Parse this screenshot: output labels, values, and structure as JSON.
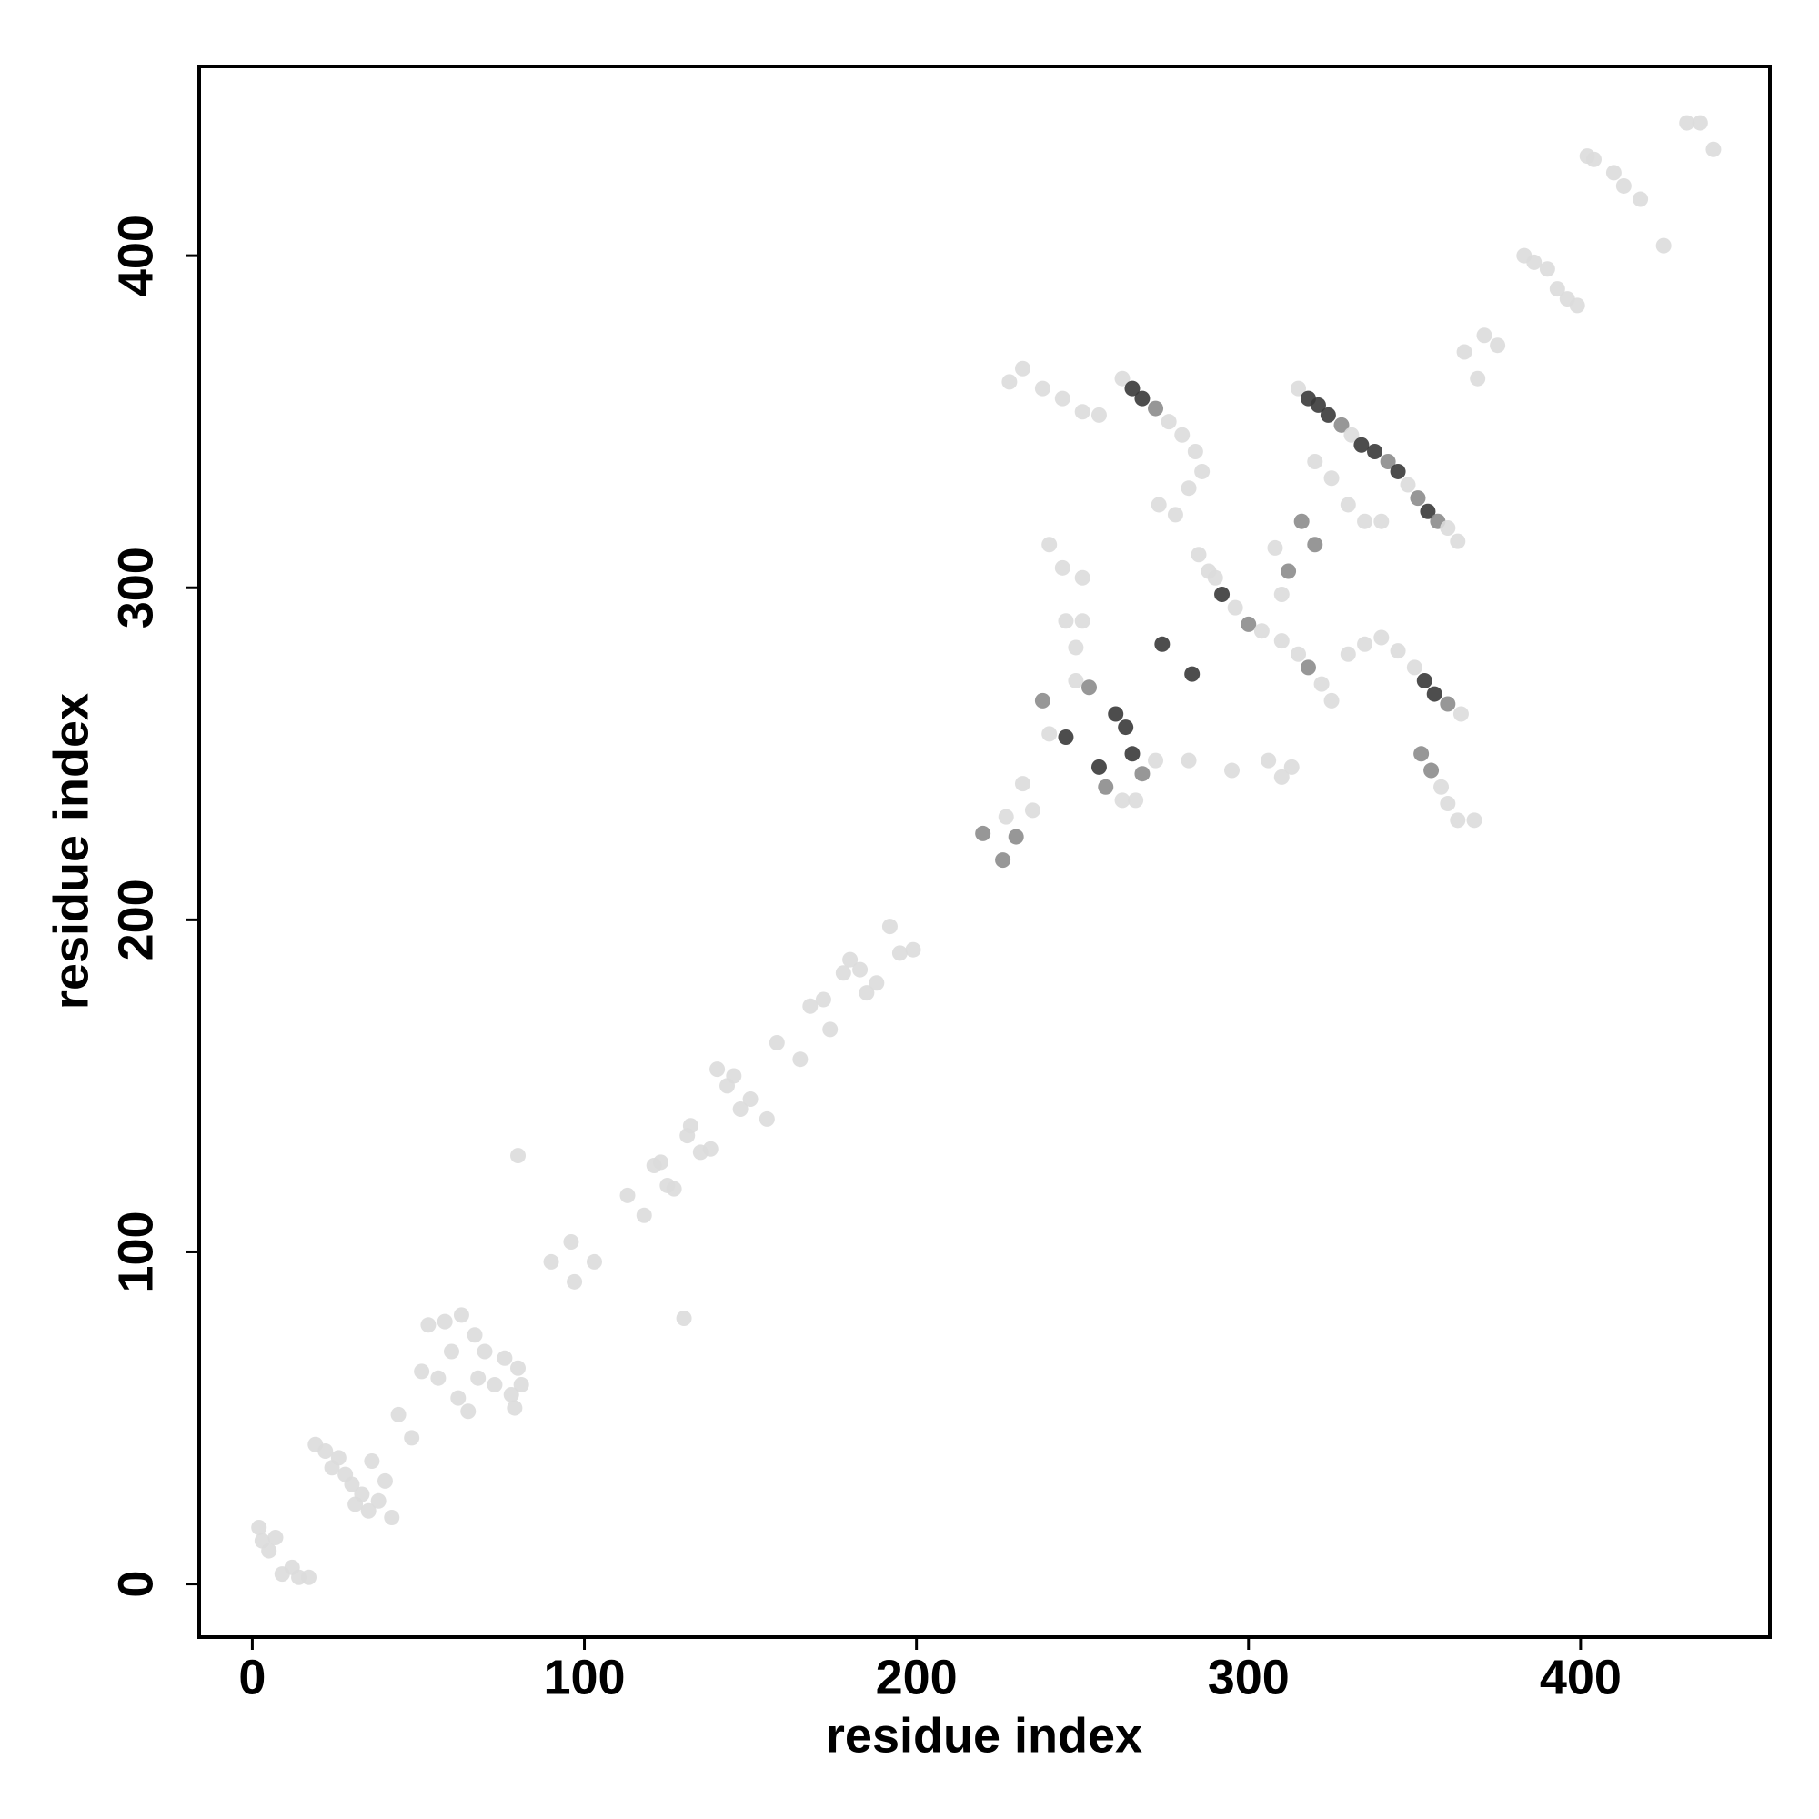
{
  "chart_data": {
    "type": "scatter",
    "x_label": "residue index",
    "y_label": "residue index",
    "xlim": [
      -16,
      457
    ],
    "ylim": [
      -16,
      457
    ],
    "xticks": [
      0,
      100,
      200,
      300,
      400
    ],
    "yticks": [
      0,
      100,
      200,
      300,
      400
    ],
    "grid": false,
    "x": [
      2,
      3,
      5,
      7,
      9,
      12,
      14,
      17,
      19,
      22,
      24,
      26,
      28,
      30,
      31,
      33,
      35,
      36,
      38,
      40,
      42,
      44,
      48,
      51,
      53,
      56,
      58,
      60,
      62,
      63,
      65,
      67,
      68,
      70,
      73,
      76,
      78,
      79,
      80,
      81,
      80,
      130,
      90,
      96,
      97,
      103,
      113,
      118,
      121,
      123,
      125,
      127,
      131,
      132,
      135,
      138,
      140,
      143,
      145,
      147,
      150,
      155,
      158,
      165,
      168,
      172,
      174,
      178,
      180,
      183,
      185,
      188,
      192,
      195,
      199,
      220,
      226,
      227,
      230,
      232,
      235,
      238,
      240,
      245,
      248,
      252,
      255,
      257,
      260,
      263,
      265,
      268,
      272,
      262,
      274,
      283,
      266,
      248,
      245,
      250,
      240,
      244,
      250,
      228,
      232,
      238,
      244,
      250,
      255,
      262,
      265,
      268,
      272,
      276,
      280,
      284,
      286,
      282,
      278,
      273,
      290,
      292,
      296,
      300,
      304,
      310,
      315,
      318,
      322,
      325,
      285,
      288,
      282,
      295,
      306,
      310,
      313,
      315,
      318,
      321,
      324,
      328,
      331,
      334,
      338,
      342,
      345,
      348,
      351,
      354,
      357,
      360,
      363,
      320,
      325,
      330,
      335,
      340,
      308,
      312,
      316,
      320,
      310,
      330,
      335,
      340,
      345,
      350,
      353,
      356,
      360,
      364,
      352,
      355,
      358,
      360,
      363,
      368,
      365,
      369,
      371,
      375,
      383,
      386,
      390,
      393,
      396,
      399,
      402,
      404,
      410,
      413,
      418,
      425,
      432,
      436,
      440
    ],
    "values": [
      17,
      13,
      10,
      14,
      3,
      5,
      2,
      2,
      42,
      40,
      35,
      38,
      33,
      30,
      24,
      27,
      22,
      37,
      25,
      31,
      20,
      51,
      44,
      64,
      78,
      62,
      79,
      70,
      56,
      81,
      52,
      75,
      62,
      70,
      60,
      68,
      57,
      53,
      65,
      60,
      129,
      80,
      97,
      103,
      91,
      97,
      117,
      111,
      126,
      127,
      120,
      119,
      135,
      138,
      130,
      131,
      155,
      150,
      153,
      143,
      146,
      140,
      163,
      158,
      174,
      176,
      167,
      184,
      188,
      185,
      178,
      181,
      198,
      190,
      191,
      226,
      218,
      231,
      225,
      241,
      233,
      266,
      256,
      255,
      272,
      270,
      246,
      240,
      262,
      258,
      250,
      244,
      248,
      236,
      283,
      274,
      236,
      282,
      290,
      290,
      313,
      306,
      303,
      362,
      366,
      360,
      357,
      353,
      352,
      363,
      360,
      357,
      354,
      350,
      346,
      341,
      335,
      330,
      322,
      325,
      303,
      298,
      294,
      289,
      287,
      284,
      280,
      276,
      271,
      266,
      310,
      305,
      248,
      245,
      248,
      243,
      246,
      360,
      357,
      355,
      352,
      349,
      346,
      343,
      341,
      338,
      335,
      331,
      327,
      323,
      320,
      318,
      314,
      338,
      333,
      325,
      320,
      320,
      312,
      305,
      320,
      313,
      298,
      280,
      283,
      285,
      281,
      276,
      272,
      268,
      265,
      262,
      250,
      245,
      240,
      235,
      230,
      230,
      371,
      363,
      376,
      373,
      400,
      398,
      396,
      390,
      387,
      385,
      430,
      429,
      425,
      421,
      417,
      403,
      440,
      440,
      432
    ],
    "colors": [
      "#dcdcdc",
      "#dcdcdc",
      "#dcdcdc",
      "#dcdcdc",
      "#dcdcdc",
      "#dcdcdc",
      "#dcdcdc",
      "#dcdcdc",
      "#dcdcdc",
      "#dcdcdc",
      "#dcdcdc",
      "#dcdcdc",
      "#dcdcdc",
      "#dcdcdc",
      "#dcdcdc",
      "#dcdcdc",
      "#dcdcdc",
      "#dcdcdc",
      "#dcdcdc",
      "#dcdcdc",
      "#dcdcdc",
      "#dcdcdc",
      "#dcdcdc",
      "#dcdcdc",
      "#dcdcdc",
      "#dcdcdc",
      "#dcdcdc",
      "#dcdcdc",
      "#dcdcdc",
      "#dcdcdc",
      "#dcdcdc",
      "#dcdcdc",
      "#dcdcdc",
      "#dcdcdc",
      "#dcdcdc",
      "#dcdcdc",
      "#dcdcdc",
      "#dcdcdc",
      "#dcdcdc",
      "#dcdcdc",
      "#dcdcdc",
      "#dcdcdc",
      "#dcdcdc",
      "#dcdcdc",
      "#dcdcdc",
      "#dcdcdc",
      "#dcdcdc",
      "#dcdcdc",
      "#dcdcdc",
      "#dcdcdc",
      "#dcdcdc",
      "#dcdcdc",
      "#dcdcdc",
      "#dcdcdc",
      "#dcdcdc",
      "#dcdcdc",
      "#dcdcdc",
      "#dcdcdc",
      "#dcdcdc",
      "#dcdcdc",
      "#dcdcdc",
      "#dcdcdc",
      "#dcdcdc",
      "#dcdcdc",
      "#dcdcdc",
      "#dcdcdc",
      "#dcdcdc",
      "#dcdcdc",
      "#dcdcdc",
      "#dcdcdc",
      "#dcdcdc",
      "#dcdcdc",
      "#dcdcdc",
      "#dcdcdc",
      "#dcdcdc",
      "#8c8c8c",
      "#8c8c8c",
      "#dcdcdc",
      "#8c8c8c",
      "#dcdcdc",
      "#dcdcdc",
      "#8c8c8c",
      "#dcdcdc",
      "#3a3a3a",
      "#dcdcdc",
      "#8c8c8c",
      "#3a3a3a",
      "#8c8c8c",
      "#3a3a3a",
      "#3a3a3a",
      "#3a3a3a",
      "#8c8c8c",
      "#dcdcdc",
      "#dcdcdc",
      "#3a3a3a",
      "#3a3a3a",
      "#dcdcdc",
      "#dcdcdc",
      "#dcdcdc",
      "#dcdcdc",
      "#dcdcdc",
      "#dcdcdc",
      "#dcdcdc",
      "#dcdcdc",
      "#dcdcdc",
      "#dcdcdc",
      "#dcdcdc",
      "#dcdcdc",
      "#dcdcdc",
      "#dcdcdc",
      "#3a3a3a",
      "#3a3a3a",
      "#8c8c8c",
      "#dcdcdc",
      "#dcdcdc",
      "#dcdcdc",
      "#dcdcdc",
      "#dcdcdc",
      "#dcdcdc",
      "#dcdcdc",
      "#dcdcdc",
      "#3a3a3a",
      "#dcdcdc",
      "#8c8c8c",
      "#dcdcdc",
      "#dcdcdc",
      "#dcdcdc",
      "#8c8c8c",
      "#dcdcdc",
      "#dcdcdc",
      "#dcdcdc",
      "#dcdcdc",
      "#dcdcdc",
      "#dcdcdc",
      "#dcdcdc",
      "#dcdcdc",
      "#dcdcdc",
      "#dcdcdc",
      "#3a3a3a",
      "#3a3a3a",
      "#3a3a3a",
      "#8c8c8c",
      "#dcdcdc",
      "#3a3a3a",
      "#3a3a3a",
      "#8c8c8c",
      "#3a3a3a",
      "#dcdcdc",
      "#8c8c8c",
      "#3a3a3a",
      "#8c8c8c",
      "#dcdcdc",
      "#dcdcdc",
      "#dcdcdc",
      "#dcdcdc",
      "#dcdcdc",
      "#dcdcdc",
      "#dcdcdc",
      "#dcdcdc",
      "#8c8c8c",
      "#8c8c8c",
      "#8c8c8c",
      "#dcdcdc",
      "#dcdcdc",
      "#dcdcdc",
      "#dcdcdc",
      "#dcdcdc",
      "#dcdcdc",
      "#3a3a3a",
      "#3a3a3a",
      "#8c8c8c",
      "#dcdcdc",
      "#8c8c8c",
      "#8c8c8c",
      "#dcdcdc",
      "#dcdcdc",
      "#dcdcdc",
      "#dcdcdc",
      "#dcdcdc",
      "#dcdcdc",
      "#dcdcdc",
      "#dcdcdc",
      "#dcdcdc",
      "#dcdcdc",
      "#dcdcdc",
      "#dcdcdc",
      "#dcdcdc",
      "#dcdcdc",
      "#dcdcdc",
      "#dcdcdc",
      "#dcdcdc",
      "#dcdcdc",
      "#dcdcdc",
      "#dcdcdc",
      "#dcdcdc",
      "#dcdcdc",
      "#dcdcdc"
    ]
  }
}
